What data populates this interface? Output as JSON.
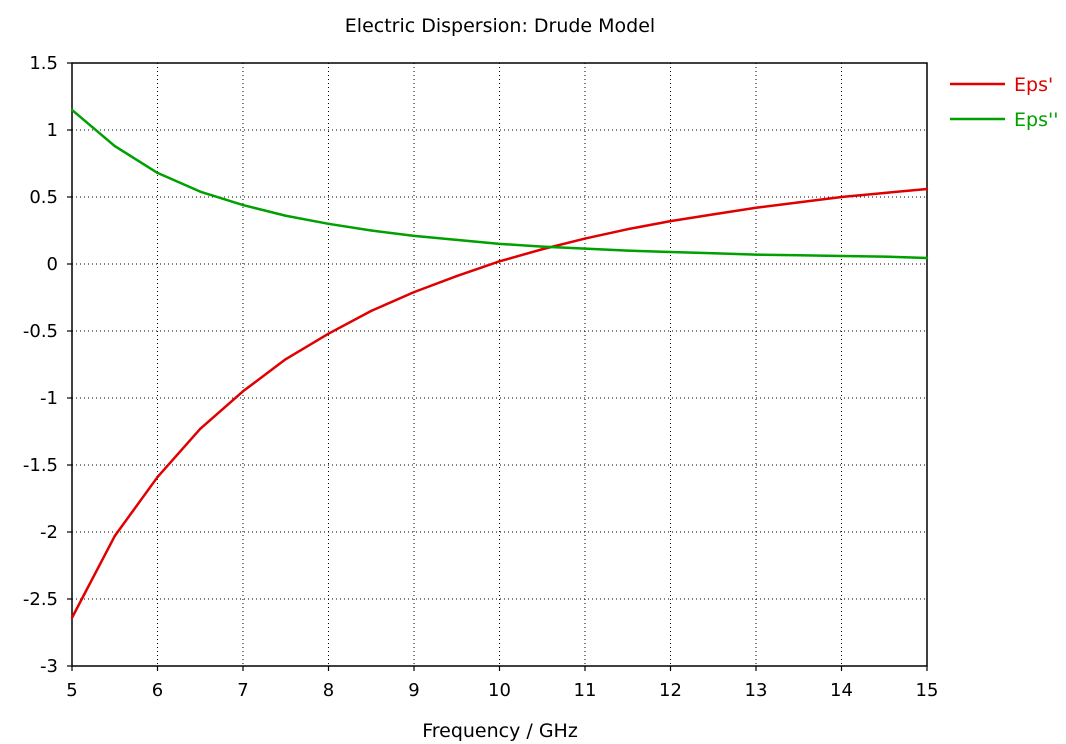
{
  "chart_data": {
    "type": "line",
    "title": "Electric Dispersion: Drude Model",
    "xlabel": "Frequency / GHz",
    "ylabel": "",
    "xlim": [
      5,
      15
    ],
    "ylim": [
      -3,
      1.5
    ],
    "x_ticks": [
      "5",
      "6",
      "7",
      "8",
      "9",
      "10",
      "11",
      "12",
      "13",
      "14",
      "15"
    ],
    "y_ticks": [
      "1.5",
      "1",
      "0.5",
      "0",
      "-0.5",
      "-1",
      "-1.5",
      "-2",
      "-2.5",
      "-3"
    ],
    "grid": true,
    "legend_position": "top-right",
    "x": [
      5,
      5.5,
      6,
      6.5,
      7,
      7.5,
      8,
      8.5,
      9,
      9.5,
      10,
      10.5,
      11,
      11.5,
      12,
      12.5,
      13,
      13.5,
      14,
      14.5,
      15
    ],
    "series": [
      {
        "name": "Eps'",
        "color": "#e00000",
        "values": [
          -2.64,
          -2.03,
          -1.59,
          -1.23,
          -0.95,
          -0.71,
          -0.52,
          -0.35,
          -0.21,
          -0.09,
          0.02,
          0.11,
          0.19,
          0.26,
          0.32,
          0.37,
          0.42,
          0.46,
          0.5,
          0.53,
          0.56
        ]
      },
      {
        "name": "Eps''",
        "color": "#00a000",
        "values": [
          1.15,
          0.88,
          0.68,
          0.54,
          0.44,
          0.36,
          0.3,
          0.25,
          0.21,
          0.18,
          0.15,
          0.13,
          0.115,
          0.1,
          0.09,
          0.08,
          0.07,
          0.065,
          0.06,
          0.055,
          0.045
        ]
      }
    ]
  }
}
